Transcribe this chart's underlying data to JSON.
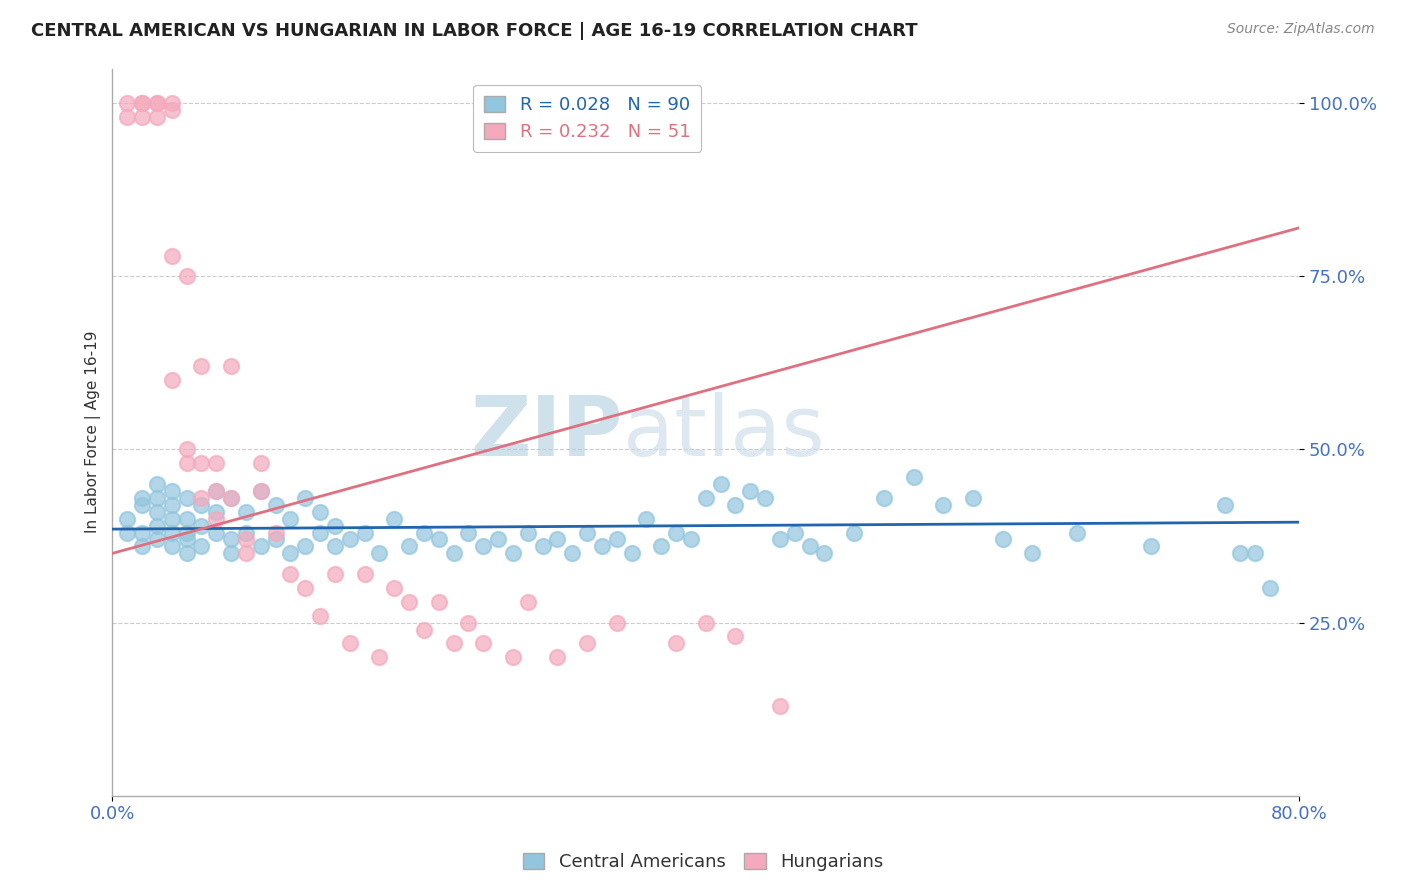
{
  "title": "CENTRAL AMERICAN VS HUNGARIAN IN LABOR FORCE | AGE 16-19 CORRELATION CHART",
  "source_text": "Source: ZipAtlas.com",
  "ylabel": "In Labor Force | Age 16-19",
  "xlim": [
    0.0,
    0.8
  ],
  "ylim": [
    0.0,
    1.05
  ],
  "yticks": [
    0.25,
    0.5,
    0.75,
    1.0
  ],
  "yticklabels": [
    "25.0%",
    "50.0%",
    "75.0%",
    "100.0%"
  ],
  "xticks": [
    0.0,
    0.8
  ],
  "xticklabels": [
    "0.0%",
    "80.0%"
  ],
  "blue_R": 0.028,
  "blue_N": 90,
  "pink_R": 0.232,
  "pink_N": 51,
  "blue_color": "#92c5de",
  "pink_color": "#f4a9bc",
  "blue_line_color": "#2166ac",
  "pink_line_color": "#e07080",
  "tick_color": "#4472c4",
  "title_fontsize": 13,
  "axis_label_fontsize": 11,
  "tick_fontsize": 13,
  "legend_fontsize": 13,
  "watermark_color": "#d0e4f0",
  "background_color": "#ffffff",
  "blue_scatter_x": [
    0.01,
    0.01,
    0.02,
    0.02,
    0.02,
    0.02,
    0.03,
    0.03,
    0.03,
    0.03,
    0.03,
    0.04,
    0.04,
    0.04,
    0.04,
    0.04,
    0.05,
    0.05,
    0.05,
    0.05,
    0.05,
    0.06,
    0.06,
    0.06,
    0.07,
    0.07,
    0.07,
    0.08,
    0.08,
    0.08,
    0.09,
    0.09,
    0.1,
    0.1,
    0.11,
    0.11,
    0.12,
    0.12,
    0.13,
    0.13,
    0.14,
    0.14,
    0.15,
    0.15,
    0.16,
    0.17,
    0.18,
    0.19,
    0.2,
    0.21,
    0.22,
    0.23,
    0.24,
    0.25,
    0.26,
    0.27,
    0.28,
    0.29,
    0.3,
    0.31,
    0.32,
    0.33,
    0.34,
    0.35,
    0.36,
    0.37,
    0.38,
    0.39,
    0.4,
    0.41,
    0.42,
    0.43,
    0.44,
    0.45,
    0.46,
    0.47,
    0.48,
    0.5,
    0.52,
    0.54,
    0.56,
    0.58,
    0.6,
    0.62,
    0.65,
    0.7,
    0.75,
    0.76,
    0.77,
    0.78
  ],
  "blue_scatter_y": [
    0.4,
    0.38,
    0.43,
    0.36,
    0.42,
    0.38,
    0.45,
    0.37,
    0.41,
    0.43,
    0.39,
    0.36,
    0.38,
    0.4,
    0.44,
    0.42,
    0.38,
    0.4,
    0.43,
    0.35,
    0.37,
    0.42,
    0.36,
    0.39,
    0.38,
    0.41,
    0.44,
    0.37,
    0.43,
    0.35,
    0.38,
    0.41,
    0.36,
    0.44,
    0.37,
    0.42,
    0.35,
    0.4,
    0.36,
    0.43,
    0.38,
    0.41,
    0.36,
    0.39,
    0.37,
    0.38,
    0.35,
    0.4,
    0.36,
    0.38,
    0.37,
    0.35,
    0.38,
    0.36,
    0.37,
    0.35,
    0.38,
    0.36,
    0.37,
    0.35,
    0.38,
    0.36,
    0.37,
    0.35,
    0.4,
    0.36,
    0.38,
    0.37,
    0.43,
    0.45,
    0.42,
    0.44,
    0.43,
    0.37,
    0.38,
    0.36,
    0.35,
    0.38,
    0.43,
    0.46,
    0.42,
    0.43,
    0.37,
    0.35,
    0.38,
    0.36,
    0.42,
    0.35,
    0.35,
    0.3
  ],
  "pink_scatter_x": [
    0.01,
    0.01,
    0.02,
    0.02,
    0.02,
    0.03,
    0.03,
    0.03,
    0.04,
    0.04,
    0.04,
    0.04,
    0.05,
    0.05,
    0.05,
    0.06,
    0.06,
    0.06,
    0.07,
    0.07,
    0.07,
    0.08,
    0.08,
    0.09,
    0.09,
    0.1,
    0.1,
    0.11,
    0.12,
    0.13,
    0.14,
    0.15,
    0.16,
    0.17,
    0.18,
    0.19,
    0.2,
    0.21,
    0.22,
    0.23,
    0.24,
    0.25,
    0.27,
    0.28,
    0.3,
    0.32,
    0.34,
    0.38,
    0.4,
    0.42,
    0.45
  ],
  "pink_scatter_y": [
    1.0,
    0.98,
    1.0,
    0.98,
    1.0,
    1.0,
    0.98,
    1.0,
    0.99,
    1.0,
    0.78,
    0.6,
    0.5,
    0.48,
    0.75,
    0.48,
    0.43,
    0.62,
    0.44,
    0.4,
    0.48,
    0.43,
    0.62,
    0.37,
    0.35,
    0.44,
    0.48,
    0.38,
    0.32,
    0.3,
    0.26,
    0.32,
    0.22,
    0.32,
    0.2,
    0.3,
    0.28,
    0.24,
    0.28,
    0.22,
    0.25,
    0.22,
    0.2,
    0.28,
    0.2,
    0.22,
    0.25,
    0.22,
    0.25,
    0.23,
    0.13
  ],
  "pink_line_x0": 0.0,
  "pink_line_y0": 0.35,
  "pink_line_x1": 0.8,
  "pink_line_y1": 0.82,
  "blue_line_x0": 0.0,
  "blue_line_y0": 0.385,
  "blue_line_x1": 0.8,
  "blue_line_y1": 0.395
}
